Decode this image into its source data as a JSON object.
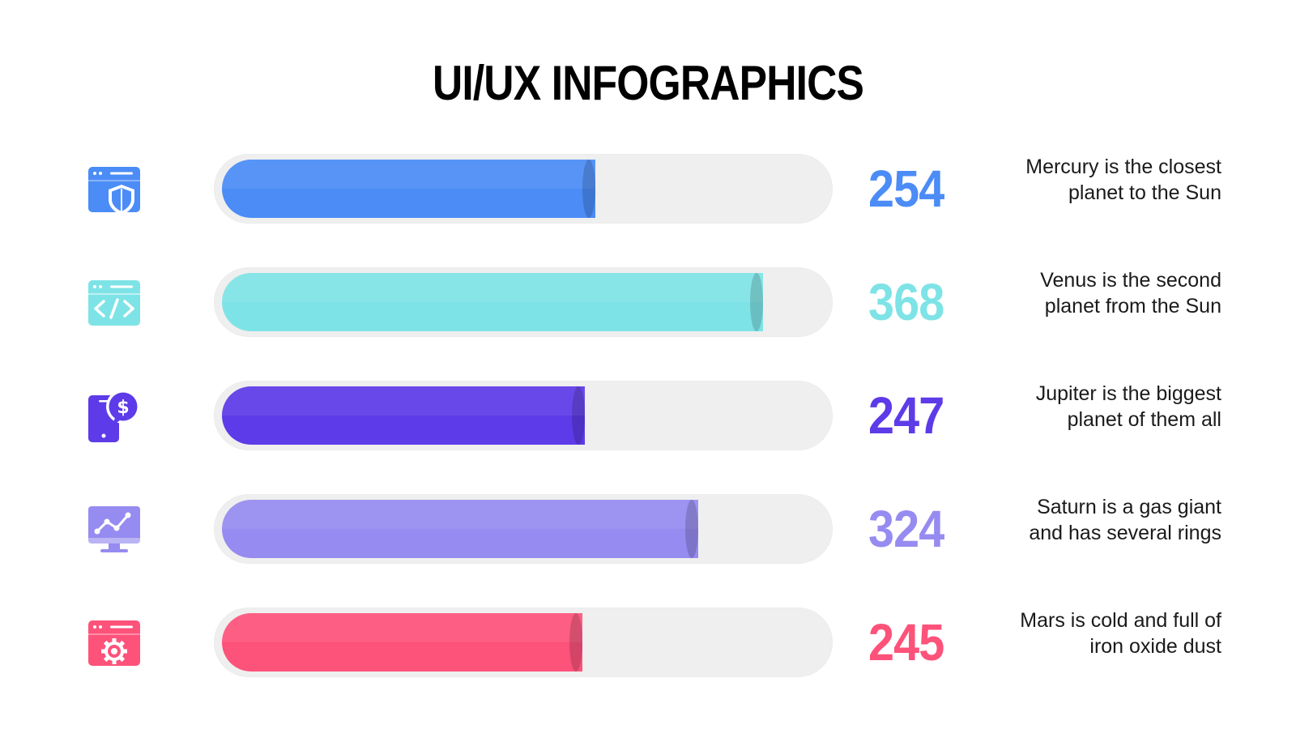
{
  "title": "UI/UX INFOGRAPHICS",
  "chart_data": {
    "type": "bar",
    "orientation": "horizontal",
    "scale_max": 410,
    "grid": false,
    "legend": "none",
    "categories": [
      "Mercury is the closest planet to the Sun",
      "Venus is the second planet from the Sun",
      "Jupiter is the biggest planet of them all",
      "Saturn is a gas giant and has several rings",
      "Mars is cold and full of iron oxide dust"
    ],
    "values": [
      254,
      368,
      247,
      324,
      245
    ]
  },
  "rows": [
    {
      "icon": "browser-shield-icon",
      "value": "254",
      "color": "#4b8cf6",
      "desc_line1": "Mercury is the closest",
      "desc_line2": "planet to the Sun"
    },
    {
      "icon": "browser-code-icon",
      "value": "368",
      "color": "#7ee3e6",
      "desc_line1": "Venus is the second",
      "desc_line2": "planet from the Sun"
    },
    {
      "icon": "phone-dollar-icon",
      "value": "247",
      "color": "#5e3be8",
      "desc_line1": "Jupiter is the biggest",
      "desc_line2": "planet of them all"
    },
    {
      "icon": "monitor-chart-icon",
      "value": "324",
      "color": "#968bf0",
      "desc_line1": "Saturn is a gas giant",
      "desc_line2": "and has several rings"
    },
    {
      "icon": "browser-gear-icon",
      "value": "245",
      "color": "#fd527a",
      "desc_line1": "Mars is cold and full of",
      "desc_line2": "iron oxide dust"
    }
  ]
}
